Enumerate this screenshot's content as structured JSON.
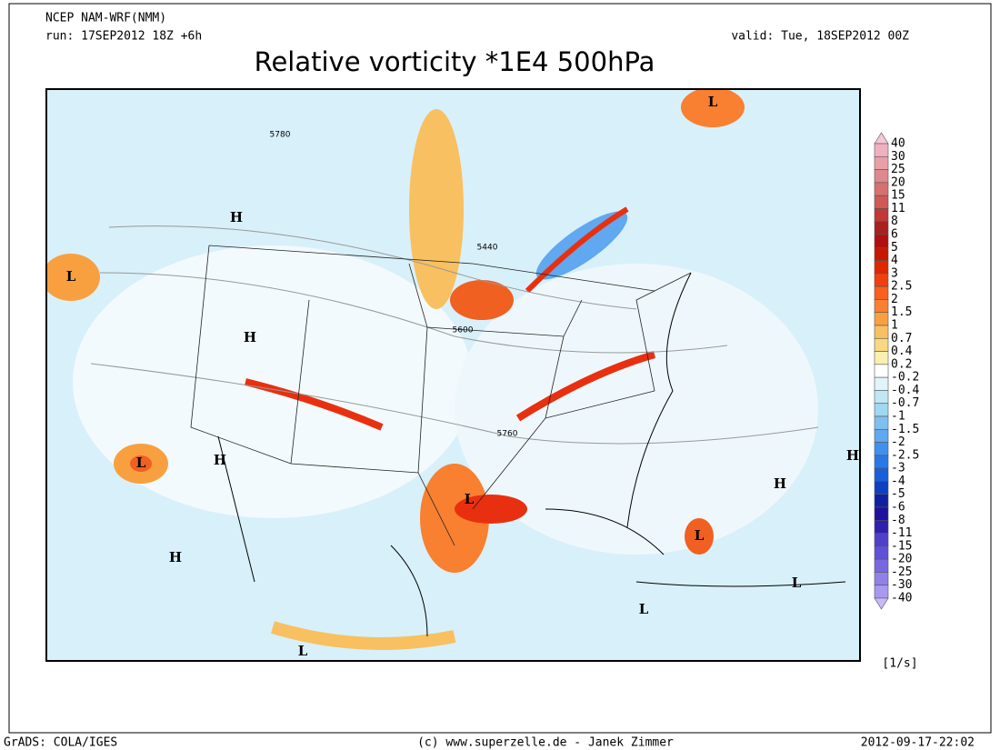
{
  "header": {
    "model": "NCEP NAM-WRF(NMM)",
    "run": "run: 17SEP2012 18Z +6h",
    "valid": "valid: Tue, 18SEP2012 00Z",
    "title": "Relative vorticity *1E4 500hPa"
  },
  "map": {
    "labels": [
      "H",
      "L",
      "H",
      "L",
      "H",
      "H",
      "L",
      "L",
      "H",
      "H",
      "L",
      "L",
      "L",
      "L"
    ],
    "contour_labels": [
      "5780",
      "5440",
      "5600",
      "5760"
    ]
  },
  "colorbar": {
    "levels": [
      40,
      30,
      25,
      20,
      15,
      11,
      8,
      6,
      5,
      4,
      3,
      2.5,
      2,
      1.5,
      1,
      0.7,
      0.4,
      0.2,
      -0.2,
      -0.4,
      -0.7,
      -1,
      -1.5,
      -2,
      -2.5,
      -3,
      -4,
      -5,
      -6,
      -8,
      -11,
      -15,
      -20,
      -25,
      -30,
      -40
    ],
    "colors": [
      "#f5c8d8",
      "#f0b0c0",
      "#e8a0a8",
      "#e08890",
      "#d87070",
      "#d05858",
      "#c03838",
      "#a82020",
      "#b01010",
      "#c81800",
      "#e02800",
      "#f04010",
      "#f86020",
      "#f88030",
      "#f8a040",
      "#f8c060",
      "#f8d880",
      "#f8f0b0",
      "#ffffff",
      "#e0f4fa",
      "#c0e8f4",
      "#a0d8f0",
      "#80c0f0",
      "#60a8f0",
      "#4090f0",
      "#2878e8",
      "#1860d8",
      "#1040c0",
      "#1020a0",
      "#2010a0",
      "#3020b0",
      "#5040c8",
      "#6050d8",
      "#7868e0",
      "#9080e8",
      "#a898f0",
      "#c8b8f8"
    ],
    "unit": "[1/s]"
  },
  "footer": {
    "left": "GrADS: COLA/IGES",
    "center": "(c) www.superzelle.de - Janek Zimmer",
    "right": "2012-09-17-22:02"
  }
}
